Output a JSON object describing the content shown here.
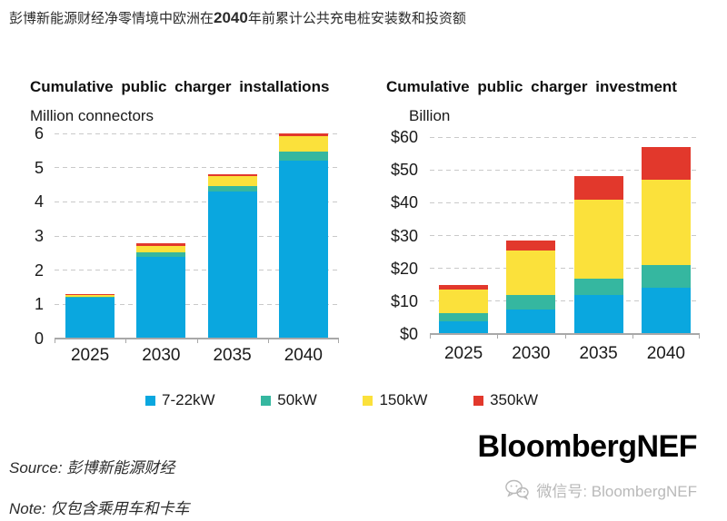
{
  "page": {
    "title_prefix": "彭博新能源财经净零情境中欧洲在",
    "title_year": "2040",
    "title_suffix": "年前累计公共充电桩安装数和投资额"
  },
  "colors": {
    "blue": "#0AA7DF",
    "teal": "#35B7A0",
    "yellow": "#FBE13B",
    "red": "#E2382C",
    "grid": "#C9C9C9",
    "axis": "#A8A8A8"
  },
  "chart_data": [
    {
      "type": "bar",
      "stacked": true,
      "title": "Cumulative public charger installations",
      "ylabel": "Million connectors",
      "categories": [
        "2025",
        "2030",
        "2035",
        "2040"
      ],
      "series": [
        {
          "name": "7-22kW",
          "color": "#0AA7DF",
          "values": [
            1.2,
            2.4,
            4.3,
            5.2
          ]
        },
        {
          "name": "50kW",
          "color": "#35B7A0",
          "values": [
            0.03,
            0.13,
            0.17,
            0.27
          ]
        },
        {
          "name": "150kW",
          "color": "#FBE13B",
          "values": [
            0.05,
            0.18,
            0.27,
            0.45
          ]
        },
        {
          "name": "350kW",
          "color": "#E2382C",
          "values": [
            0.03,
            0.07,
            0.07,
            0.08
          ]
        }
      ],
      "ylim": [
        0,
        6
      ],
      "yticks": [
        0,
        1,
        2,
        3,
        4,
        5,
        6
      ],
      "ytick_labels": [
        "0",
        "1",
        "2",
        "3",
        "4",
        "5",
        "6"
      ],
      "grid": "dashed horizontal",
      "legend_position": "shared bottom"
    },
    {
      "type": "bar",
      "stacked": true,
      "title": "Cumulative public charger investment",
      "ylabel": "Billion",
      "categories": [
        "2025",
        "2030",
        "2035",
        "2040"
      ],
      "series": [
        {
          "name": "7-22kW",
          "color": "#0AA7DF",
          "values": [
            4.0,
            7.5,
            12.0,
            14.0
          ]
        },
        {
          "name": "50kW",
          "color": "#35B7A0",
          "values": [
            2.5,
            4.5,
            5.0,
            7.0
          ]
        },
        {
          "name": "150kW",
          "color": "#FBE13B",
          "values": [
            7.0,
            13.5,
            24.0,
            26.0
          ]
        },
        {
          "name": "350kW",
          "color": "#E2382C",
          "values": [
            1.5,
            3.0,
            7.0,
            10.0
          ]
        }
      ],
      "ylim": [
        0,
        60
      ],
      "yticks": [
        0,
        10,
        20,
        30,
        40,
        50,
        60
      ],
      "ytick_labels": [
        "$0",
        "$10",
        "$20",
        "$30",
        "$40",
        "$50",
        "$60"
      ],
      "grid": "dashed horizontal",
      "legend_position": "shared bottom"
    }
  ],
  "legend": [
    {
      "label": "7-22kW",
      "color_hex": "#0AA7DF"
    },
    {
      "label": "50kW",
      "color_hex": "#35B7A0"
    },
    {
      "label": "150kW",
      "color_hex": "#FBE13B"
    },
    {
      "label": "350kW",
      "color_hex": "#E2382C"
    }
  ],
  "footer": {
    "source_label": "Source:",
    "source_text": "彭博新能源财经",
    "note_label": "Note:",
    "note_text": "仅包含乘用车和卡车",
    "logo": "BloombergNEF",
    "wechat": "微信号: BloombergNEF"
  }
}
